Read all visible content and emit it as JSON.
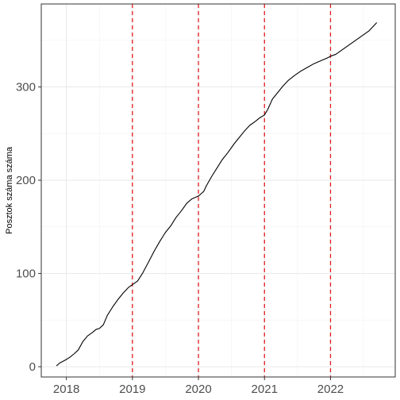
{
  "chart_data": {
    "type": "line",
    "title": "",
    "xlabel": "",
    "ylabel": "Posztok száma száma",
    "x_tick_labels": [
      "2018",
      "2019",
      "2020",
      "2021",
      "2022"
    ],
    "x_tick_values": [
      2018.0,
      2019.0,
      2020.0,
      2021.0,
      2022.0
    ],
    "y_tick_labels": [
      "0",
      "100",
      "200",
      "300"
    ],
    "y_tick_values": [
      0,
      100,
      200,
      300
    ],
    "xlim": [
      2017.62,
      2022.98
    ],
    "ylim": [
      -11,
      389
    ],
    "grid": true,
    "legend": "none",
    "vlines": [
      2019.0,
      2020.0,
      2021.0,
      2022.0
    ],
    "vline_color": "#e31a1c",
    "line_color": "#000000",
    "series": [
      {
        "x": [
          2017.85,
          2017.9,
          2017.98,
          2018.05,
          2018.12,
          2018.18,
          2018.25,
          2018.32,
          2018.4,
          2018.45,
          2018.5,
          2018.56,
          2018.62,
          2018.7,
          2018.78,
          2018.86,
          2018.94,
          2019.0,
          2019.08,
          2019.16,
          2019.25,
          2019.33,
          2019.42,
          2019.5,
          2019.58,
          2019.66,
          2019.75,
          2019.82,
          2019.9,
          2020.0,
          2020.08,
          2020.12,
          2020.2,
          2020.28,
          2020.36,
          2020.45,
          2020.54,
          2020.62,
          2020.7,
          2020.78,
          2020.86,
          2020.93,
          2021.0,
          2021.05,
          2021.12,
          2021.2,
          2021.28,
          2021.36,
          2021.45,
          2021.55,
          2021.65,
          2021.75,
          2021.85,
          2021.95,
          2022.0,
          2022.08,
          2022.18,
          2022.28,
          2022.38,
          2022.48,
          2022.58,
          2022.7
        ],
        "y": [
          1,
          4,
          7,
          10,
          14,
          18,
          27,
          33,
          37,
          40,
          41,
          45,
          55,
          64,
          72,
          79,
          85,
          88,
          92,
          101,
          113,
          124,
          135,
          144,
          151,
          160,
          168,
          175,
          180,
          183,
          188,
          194,
          204,
          213,
          222,
          230,
          239,
          246,
          253,
          259,
          263,
          267,
          270,
          276,
          287,
          294,
          301,
          307,
          312,
          317,
          321,
          325,
          328,
          331,
          333,
          335,
          340,
          345,
          350,
          355,
          360,
          369
        ]
      }
    ]
  }
}
